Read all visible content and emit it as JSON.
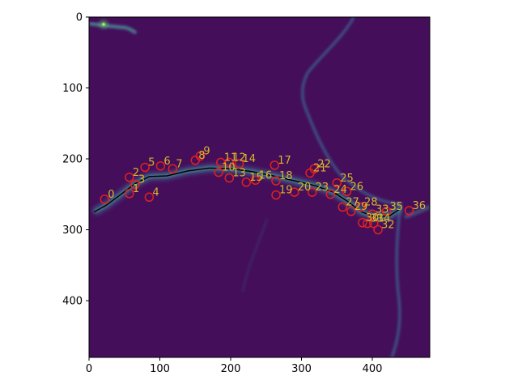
{
  "figure": {
    "x_ticks": [
      "0",
      "100",
      "200",
      "300",
      "400"
    ],
    "y_ticks": [
      "0",
      "100",
      "200",
      "300",
      "400"
    ],
    "image_extent": [
      0,
      480,
      480,
      0
    ],
    "colors": {
      "background": "#440d58",
      "filament": "#3b7fa2",
      "bright_spot": "#5fd06a",
      "path_line": "#000000",
      "marker": "#e02020",
      "label": "#d6b82a"
    },
    "points": [
      {
        "label": "0",
        "x": 22,
        "y": 257
      },
      {
        "label": "1",
        "x": 57,
        "y": 249
      },
      {
        "label": "2",
        "x": 57,
        "y": 226
      },
      {
        "label": "3",
        "x": 65,
        "y": 236
      },
      {
        "label": "4",
        "x": 85,
        "y": 254
      },
      {
        "label": "5",
        "x": 79,
        "y": 212
      },
      {
        "label": "6",
        "x": 101,
        "y": 210
      },
      {
        "label": "7",
        "x": 118,
        "y": 214
      },
      {
        "label": "8",
        "x": 150,
        "y": 202
      },
      {
        "label": "9",
        "x": 157,
        "y": 196
      },
      {
        "label": "10",
        "x": 183,
        "y": 219
      },
      {
        "label": "11",
        "x": 186,
        "y": 205
      },
      {
        "label": "12",
        "x": 198,
        "y": 205
      },
      {
        "label": "13",
        "x": 198,
        "y": 227
      },
      {
        "label": "14",
        "x": 212,
        "y": 207
      },
      {
        "label": "15",
        "x": 222,
        "y": 233
      },
      {
        "label": "16",
        "x": 235,
        "y": 230
      },
      {
        "label": "17",
        "x": 262,
        "y": 209
      },
      {
        "label": "18",
        "x": 264,
        "y": 231
      },
      {
        "label": "19",
        "x": 264,
        "y": 251
      },
      {
        "label": "20",
        "x": 290,
        "y": 247
      },
      {
        "label": "21",
        "x": 312,
        "y": 220
      },
      {
        "label": "22",
        "x": 318,
        "y": 214
      },
      {
        "label": "23",
        "x": 315,
        "y": 247
      },
      {
        "label": "24",
        "x": 341,
        "y": 250
      },
      {
        "label": "25",
        "x": 350,
        "y": 234
      },
      {
        "label": "26",
        "x": 364,
        "y": 246
      },
      {
        "label": "27",
        "x": 358,
        "y": 268
      },
      {
        "label": "28",
        "x": 384,
        "y": 268
      },
      {
        "label": "29",
        "x": 370,
        "y": 274
      },
      {
        "label": "30",
        "x": 386,
        "y": 290
      },
      {
        "label": "31",
        "x": 393,
        "y": 291
      },
      {
        "label": "32",
        "x": 408,
        "y": 300
      },
      {
        "label": "33",
        "x": 400,
        "y": 278
      },
      {
        "label": "34",
        "x": 402,
        "y": 291
      },
      {
        "label": "35",
        "x": 420,
        "y": 274
      },
      {
        "label": "36",
        "x": 452,
        "y": 273
      }
    ],
    "path": [
      [
        7,
        275
      ],
      [
        25,
        265
      ],
      [
        45,
        250
      ],
      [
        65,
        235
      ],
      [
        85,
        225
      ],
      [
        110,
        224
      ],
      [
        140,
        217
      ],
      [
        170,
        213
      ],
      [
        200,
        214
      ],
      [
        230,
        218
      ],
      [
        260,
        224
      ],
      [
        290,
        231
      ],
      [
        320,
        238
      ],
      [
        345,
        247
      ],
      [
        365,
        260
      ],
      [
        385,
        275
      ],
      [
        405,
        282
      ],
      [
        425,
        280
      ],
      [
        440,
        270
      ]
    ]
  }
}
